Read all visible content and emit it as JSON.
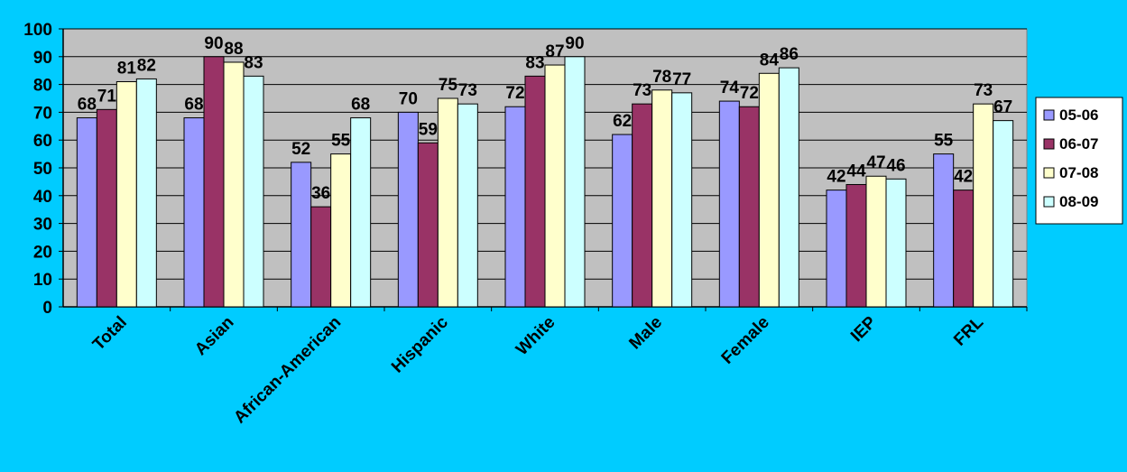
{
  "chart_data": {
    "type": "bar",
    "categories": [
      "Total",
      "Asian",
      "African-American",
      "Hispanic",
      "White",
      "Male",
      "Female",
      "IEP",
      "FRL"
    ],
    "series": [
      {
        "name": "05-06",
        "color": "#9999FF",
        "values": [
          68,
          68,
          52,
          70,
          72,
          62,
          74,
          42,
          55
        ]
      },
      {
        "name": "06-07",
        "color": "#993366",
        "values": [
          71,
          90,
          36,
          59,
          83,
          73,
          72,
          44,
          42
        ]
      },
      {
        "name": "07-08",
        "color": "#FFFFCC",
        "values": [
          81,
          88,
          55,
          75,
          87,
          78,
          84,
          47,
          73
        ]
      },
      {
        "name": "08-09",
        "color": "#CCFFFF",
        "values": [
          82,
          83,
          68,
          73,
          90,
          77,
          86,
          46,
          67
        ]
      }
    ],
    "ylim": [
      0,
      100
    ],
    "yticks": [
      0,
      10,
      20,
      30,
      40,
      50,
      60,
      70,
      80,
      90,
      100
    ],
    "grid": true,
    "legend_position": "right",
    "plot_background": "#C0C0C0",
    "page_background": "#00CCFF"
  }
}
